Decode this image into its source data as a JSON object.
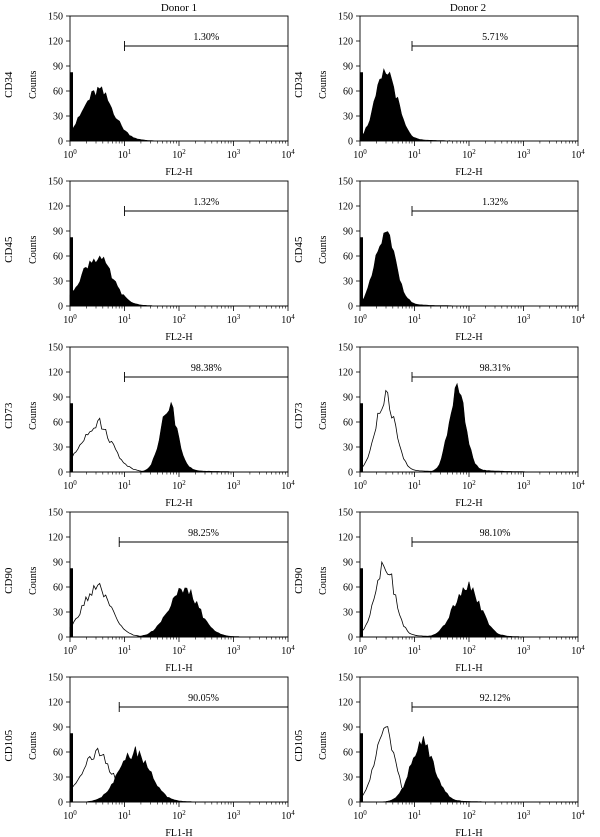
{
  "figure": {
    "columns": [
      "Donor 1",
      "Donor 2"
    ],
    "rows": [
      "CD34",
      "CD45",
      "CD73",
      "CD90",
      "CD105"
    ]
  },
  "chart_data": [
    {
      "type": "area",
      "row": "CD34",
      "column": "Donor 1",
      "channel": "FL2-H",
      "ylabel": "Counts",
      "xlabel": "FL2-H",
      "x_scale": "log",
      "xlim": [
        1,
        10000
      ],
      "ylim": [
        0,
        150
      ],
      "y_ticks": [
        0,
        30,
        60,
        90,
        120,
        150
      ],
      "x_tick_labels": [
        "10^0",
        "10^1",
        "10^2",
        "10^3",
        "10^4"
      ],
      "gate": {
        "start": 10,
        "end": 10000,
        "label": "1.30%"
      },
      "control_peak": null,
      "stained_peak": {
        "center": 3.2,
        "height": 58,
        "spread": 0.28,
        "filled": true
      }
    },
    {
      "type": "area",
      "row": "CD34",
      "column": "Donor 2",
      "channel": "FL2-H",
      "ylabel": "Counts",
      "xlabel": "FL2-H",
      "x_scale": "log",
      "xlim": [
        1,
        10000
      ],
      "ylim": [
        0,
        150
      ],
      "y_ticks": [
        0,
        30,
        60,
        90,
        120,
        150
      ],
      "x_tick_labels": [
        "10^0",
        "10^1",
        "10^2",
        "10^3",
        "10^4"
      ],
      "gate": {
        "start": 9,
        "end": 10000,
        "label": "5.71%"
      },
      "control_peak": null,
      "stained_peak": {
        "center": 3.0,
        "height": 80,
        "spread": 0.2,
        "filled": true
      }
    },
    {
      "type": "area",
      "row": "CD45",
      "column": "Donor 1",
      "channel": "FL2-H",
      "ylabel": "Counts",
      "xlabel": "FL2-H",
      "x_scale": "log",
      "xlim": [
        1,
        10000
      ],
      "ylim": [
        0,
        150
      ],
      "y_ticks": [
        0,
        30,
        60,
        90,
        120,
        150
      ],
      "x_tick_labels": [
        "10^0",
        "10^1",
        "10^2",
        "10^3",
        "10^4"
      ],
      "gate": {
        "start": 10,
        "end": 10000,
        "label": "1.32%"
      },
      "control_peak": null,
      "stained_peak": {
        "center": 3.0,
        "height": 57,
        "spread": 0.28,
        "filled": true
      }
    },
    {
      "type": "area",
      "row": "CD45",
      "column": "Donor 2",
      "channel": "FL2-H",
      "ylabel": "Counts",
      "xlabel": "FL2-H",
      "x_scale": "log",
      "xlim": [
        1,
        10000
      ],
      "ylim": [
        0,
        150
      ],
      "y_ticks": [
        0,
        30,
        60,
        90,
        120,
        150
      ],
      "x_tick_labels": [
        "10^0",
        "10^1",
        "10^2",
        "10^3",
        "10^4"
      ],
      "gate": {
        "start": 9,
        "end": 10000,
        "label": "1.32%"
      },
      "control_peak": null,
      "stained_peak": {
        "center": 2.9,
        "height": 82,
        "spread": 0.19,
        "filled": true
      }
    },
    {
      "type": "area",
      "row": "CD73",
      "column": "Donor 1",
      "channel": "FL2-H",
      "ylabel": "Counts",
      "xlabel": "FL2-H",
      "x_scale": "log",
      "xlim": [
        1,
        10000
      ],
      "ylim": [
        0,
        150
      ],
      "y_ticks": [
        0,
        30,
        60,
        90,
        120,
        150
      ],
      "x_tick_labels": [
        "10^0",
        "10^1",
        "10^2",
        "10^3",
        "10^4"
      ],
      "gate": {
        "start": 10,
        "end": 10000,
        "label": "98.38%"
      },
      "control_peak": {
        "center": 3.0,
        "height": 57,
        "spread": 0.28,
        "filled": false
      },
      "stained_peak": {
        "center": 65,
        "height": 76,
        "spread": 0.16,
        "filled": true
      }
    },
    {
      "type": "area",
      "row": "CD73",
      "column": "Donor 2",
      "channel": "FL2-H",
      "ylabel": "Counts",
      "xlabel": "FL2-H",
      "x_scale": "log",
      "xlim": [
        1,
        10000
      ],
      "ylim": [
        0,
        150
      ],
      "y_ticks": [
        0,
        30,
        60,
        90,
        120,
        150
      ],
      "x_tick_labels": [
        "10^0",
        "10^1",
        "10^2",
        "10^3",
        "10^4"
      ],
      "gate": {
        "start": 9,
        "end": 10000,
        "label": "98.31%"
      },
      "control_peak": {
        "center": 2.9,
        "height": 85,
        "spread": 0.18,
        "filled": false
      },
      "stained_peak": {
        "center": 60,
        "height": 95,
        "spread": 0.15,
        "filled": true
      }
    },
    {
      "type": "area",
      "row": "CD90",
      "column": "Donor 1",
      "channel": "FL1-H",
      "ylabel": "Counts",
      "xlabel": "FL1-H",
      "x_scale": "log",
      "xlim": [
        1,
        10000
      ],
      "ylim": [
        0,
        150
      ],
      "y_ticks": [
        0,
        30,
        60,
        90,
        120,
        150
      ],
      "x_tick_labels": [
        "10^0",
        "10^1",
        "10^2",
        "10^3",
        "10^4"
      ],
      "gate": {
        "start": 8,
        "end": 10000,
        "label": "98.25%"
      },
      "control_peak": {
        "center": 3.0,
        "height": 57,
        "spread": 0.26,
        "filled": false
      },
      "stained_peak": {
        "center": 120,
        "height": 55,
        "spread": 0.28,
        "filled": true
      }
    },
    {
      "type": "area",
      "row": "CD90",
      "column": "Donor 2",
      "channel": "FL1-H",
      "ylabel": "Counts",
      "xlabel": "FL1-H",
      "x_scale": "log",
      "xlim": [
        1,
        10000
      ],
      "ylim": [
        0,
        150
      ],
      "y_ticks": [
        0,
        30,
        60,
        90,
        120,
        150
      ],
      "x_tick_labels": [
        "10^0",
        "10^1",
        "10^2",
        "10^3",
        "10^4"
      ],
      "gate": {
        "start": 9,
        "end": 10000,
        "label": "98.10%"
      },
      "control_peak": {
        "center": 2.8,
        "height": 86,
        "spread": 0.18,
        "filled": false
      },
      "stained_peak": {
        "center": 90,
        "height": 60,
        "spread": 0.24,
        "filled": true
      }
    },
    {
      "type": "area",
      "row": "CD105",
      "column": "Donor 1",
      "channel": "FL1-H",
      "ylabel": "Counts",
      "xlabel": "FL1-H",
      "x_scale": "log",
      "xlim": [
        1,
        10000
      ],
      "ylim": [
        0,
        150
      ],
      "y_ticks": [
        0,
        30,
        60,
        90,
        120,
        150
      ],
      "x_tick_labels": [
        "10^0",
        "10^1",
        "10^2",
        "10^3",
        "10^4"
      ],
      "gate": {
        "start": 8,
        "end": 10000,
        "label": "90.05%"
      },
      "control_peak": {
        "center": 3.0,
        "height": 57,
        "spread": 0.28,
        "filled": false
      },
      "stained_peak": {
        "center": 15,
        "height": 58,
        "spread": 0.28,
        "filled": true
      }
    },
    {
      "type": "area",
      "row": "CD105",
      "column": "Donor 2",
      "channel": "FL1-H",
      "ylabel": "Counts",
      "xlabel": "FL1-H",
      "x_scale": "log",
      "xlim": [
        1,
        10000
      ],
      "ylim": [
        0,
        150
      ],
      "y_ticks": [
        0,
        30,
        60,
        90,
        120,
        150
      ],
      "x_tick_labels": [
        "10^0",
        "10^1",
        "10^2",
        "10^3",
        "10^4"
      ],
      "gate": {
        "start": 9,
        "end": 10000,
        "label": "92.12%"
      },
      "control_peak": {
        "center": 2.8,
        "height": 84,
        "spread": 0.18,
        "filled": false
      },
      "stained_peak": {
        "center": 14,
        "height": 68,
        "spread": 0.22,
        "filled": true
      }
    }
  ]
}
